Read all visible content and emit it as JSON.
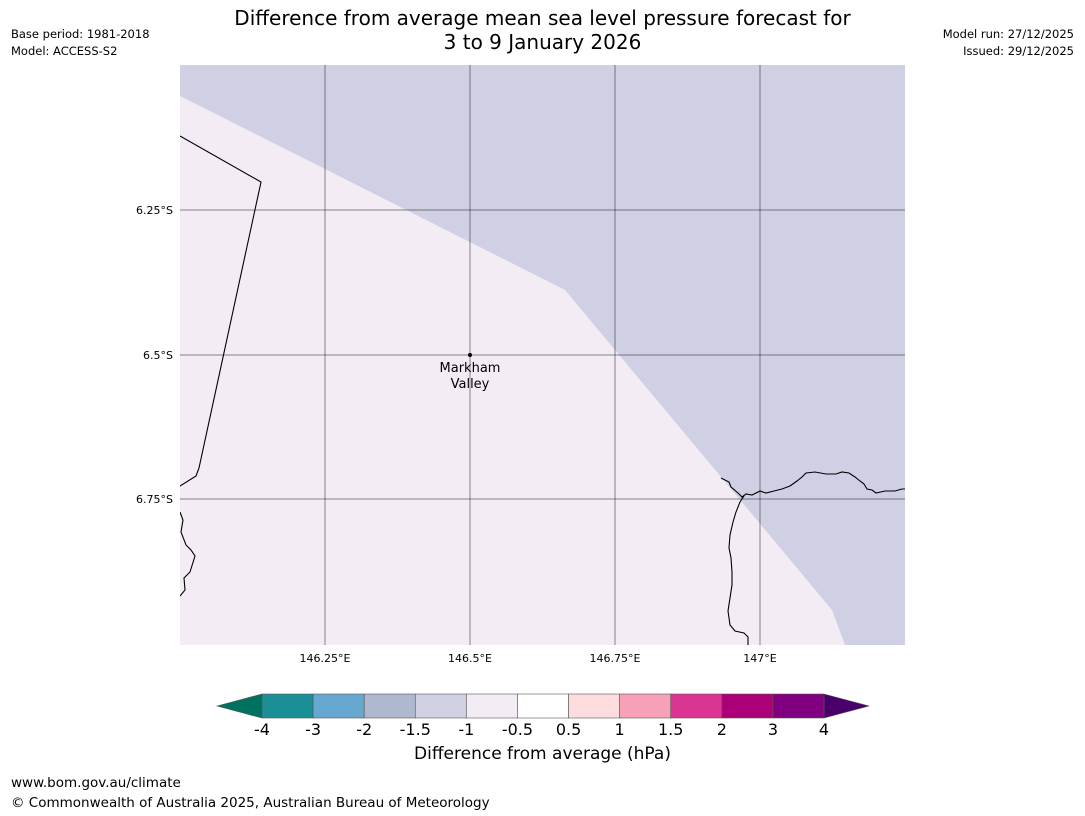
{
  "title_line1": "Difference from average mean sea level pressure forecast for",
  "title_line2": "3 to 9 January 2026",
  "base_period": "Base period: 1981-2018",
  "model": "Model: ACCESS-S2",
  "model_run": "Model run: 27/12/2025",
  "issued": "Issued: 29/12/2025",
  "map": {
    "lon_ticks": [
      "146.25°E",
      "146.5°E",
      "146.75°E",
      "147°E"
    ],
    "lat_ticks": [
      "6.25°S",
      "6.5°S",
      "6.75°S"
    ],
    "place_name_line1": "Markham",
    "place_name_line2": "Valley",
    "regions": [
      {
        "range": "-1.5 to -1",
        "color": "#d0d0e4"
      },
      {
        "range": "-1 to -0.5",
        "color": "#f3ecf5"
      }
    ]
  },
  "colorbar": {
    "tick_labels": [
      "-4",
      "-3",
      "-2",
      "-1.5",
      "-1",
      "-0.5",
      "0.5",
      "1",
      "1.5",
      "2",
      "3",
      "4"
    ],
    "colors": [
      "#1a8f96",
      "#67a8d0",
      "#afb8cf",
      "#d0d0e4",
      "#f3ecf5",
      "#ffffff",
      "#fcdcdc",
      "#f7a1b8",
      "#db3594",
      "#ac0078",
      "#810080"
    ],
    "under_color": "#00705f",
    "over_color": "#4a006a",
    "label": "Difference from average (hPa)"
  },
  "footer": {
    "url": "www.bom.gov.au/climate",
    "copyright": "© Commonwealth of Australia 2025, Australian Bureau of Meteorology"
  }
}
